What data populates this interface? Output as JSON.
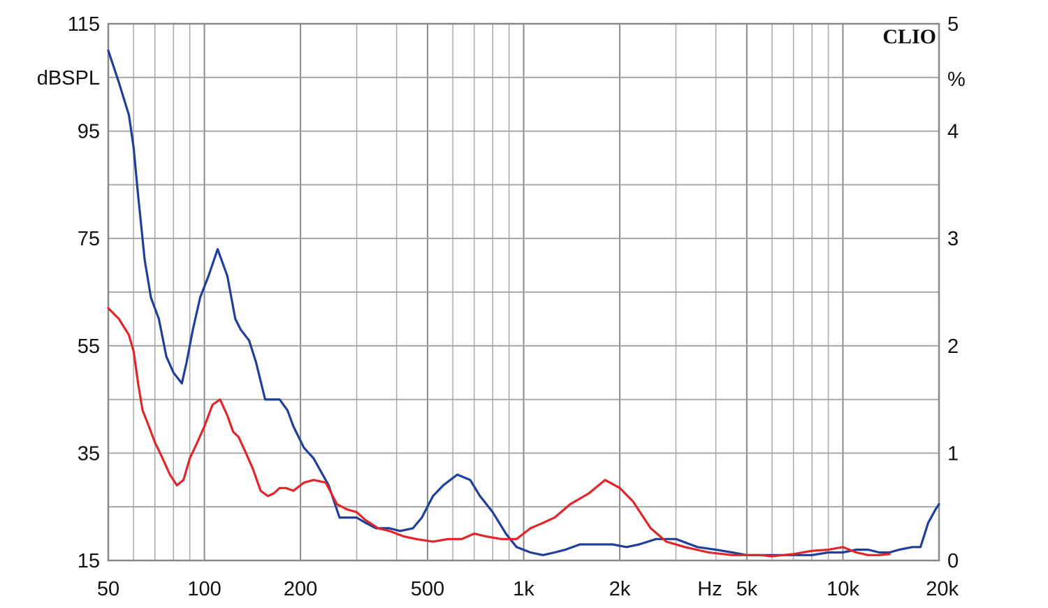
{
  "chart_data": {
    "type": "line",
    "brand": "CLIO",
    "x_scale": "log",
    "xlim": [
      50,
      20000
    ],
    "ylim_left": [
      15,
      115
    ],
    "ylim_right": [
      0,
      5
    ],
    "left_unit": "dBSPL",
    "right_unit": "%",
    "x_unit": "Hz",
    "grid": true,
    "x_ticks": [
      {
        "value": 50,
        "label": "50"
      },
      {
        "value": 100,
        "label": "100"
      },
      {
        "value": 200,
        "label": "200"
      },
      {
        "value": 500,
        "label": "500"
      },
      {
        "value": 1000,
        "label": "1k"
      },
      {
        "value": 2000,
        "label": "2k"
      },
      {
        "value": 5000,
        "label": "5k"
      },
      {
        "value": 10000,
        "label": "10k"
      },
      {
        "value": 20000,
        "label": "20k"
      }
    ],
    "y_ticks_left": [
      "115",
      "95",
      "75",
      "55",
      "35",
      "15"
    ],
    "y_ticks_right": [
      "5",
      "4",
      "3",
      "2",
      "1",
      "0"
    ],
    "series": [
      {
        "color": "#1f3f9a",
        "axis": "left",
        "x": [
          50,
          54,
          58,
          60,
          62,
          65,
          68,
          72,
          76,
          80,
          85,
          88,
          92,
          97,
          103,
          110,
          118,
          125,
          130,
          138,
          145,
          155,
          165,
          172,
          182,
          190,
          205,
          220,
          245,
          265,
          280,
          300,
          320,
          345,
          380,
          410,
          450,
          480,
          520,
          560,
          620,
          680,
          730,
          800,
          880,
          950,
          1050,
          1150,
          1250,
          1350,
          1500,
          1700,
          1900,
          2100,
          2300,
          2600,
          3000,
          3500,
          4000,
          4500,
          5000,
          6000,
          7000,
          8000,
          9000,
          10000,
          11000,
          12000,
          13000,
          14000,
          15000,
          16500,
          17500,
          18500,
          19500,
          20000
        ],
        "y": [
          110,
          104,
          98,
          92,
          83,
          71,
          64,
          60,
          53,
          50,
          48,
          52,
          58,
          64,
          68,
          73,
          68,
          60,
          58,
          56,
          52,
          45,
          45,
          45,
          43,
          40,
          36,
          34,
          29,
          23,
          23,
          23,
          22,
          21,
          21,
          20.5,
          21,
          23,
          27,
          29,
          31,
          30,
          27,
          24,
          20,
          17.5,
          16.5,
          16,
          16.5,
          17,
          18,
          18,
          18,
          17.5,
          18,
          19,
          19,
          17.5,
          17,
          16.5,
          16,
          16,
          16,
          16,
          16.5,
          16.5,
          17,
          17,
          16.5,
          16.5,
          17,
          17.5,
          17.5,
          22,
          24.5,
          25.5
        ]
      },
      {
        "color": "#e0262a",
        "axis": "left",
        "x": [
          50,
          54,
          58,
          60,
          62,
          64,
          66,
          70,
          74,
          78,
          82,
          86,
          90,
          95,
          100,
          106,
          112,
          118,
          123,
          128,
          135,
          142,
          150,
          158,
          165,
          172,
          180,
          190,
          205,
          220,
          240,
          260,
          280,
          300,
          320,
          350,
          380,
          420,
          460,
          520,
          580,
          640,
          700,
          760,
          850,
          950,
          1050,
          1150,
          1250,
          1400,
          1600,
          1800,
          2000,
          2200,
          2500,
          2800,
          3200,
          3800,
          4500,
          5000,
          5500,
          6000,
          7000,
          8000,
          9000,
          10000,
          11000,
          12000,
          13000,
          14000
        ],
        "y": [
          62,
          60,
          57,
          54,
          48,
          43,
          41,
          37,
          34,
          31,
          29,
          30,
          34,
          37,
          40,
          44,
          45,
          42,
          39,
          38,
          35,
          32,
          28,
          27,
          27.5,
          28.5,
          28.5,
          28,
          29.5,
          30,
          29.5,
          25.5,
          24.5,
          24,
          22.5,
          21,
          20.5,
          19.5,
          19,
          18.5,
          19,
          19,
          20,
          19.5,
          19,
          19,
          21,
          22,
          23,
          25.5,
          27.5,
          30,
          28.5,
          26,
          21,
          18.5,
          17.5,
          16.5,
          16,
          16,
          16,
          15.8,
          16.2,
          16.8,
          17,
          17.5,
          16.5,
          16,
          16,
          16.2
        ]
      }
    ]
  }
}
